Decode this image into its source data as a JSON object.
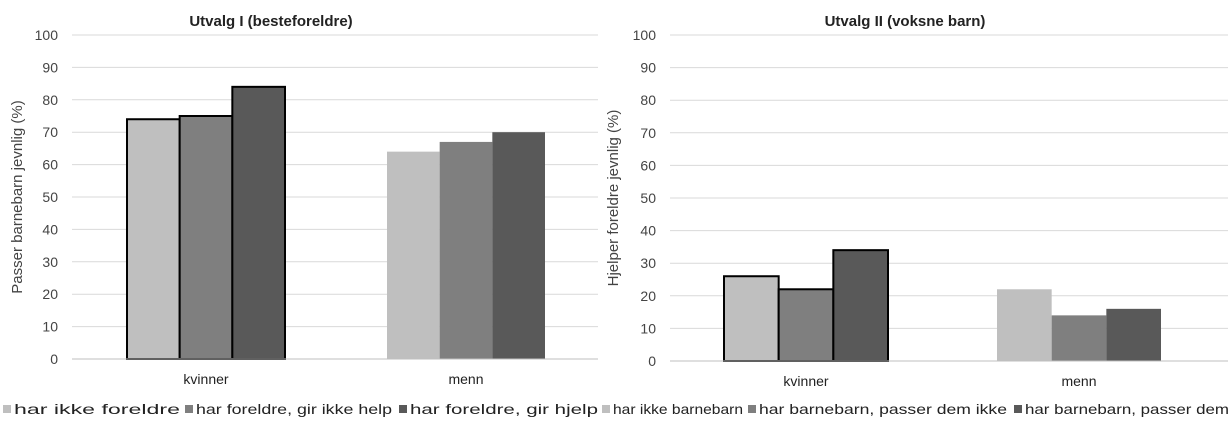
{
  "chart_data": [
    {
      "type": "bar",
      "title": "Utvalg I (besteforeldre)",
      "ylabel": "Passer barnebarn jevnlig (%)",
      "xlabel": "",
      "ylim": [
        0,
        100
      ],
      "yticks": [
        0,
        10,
        20,
        30,
        40,
        50,
        60,
        70,
        80,
        90,
        100
      ],
      "grid": true,
      "legend_position": "bottom",
      "categories": [
        "kvinner",
        "menn"
      ],
      "series": [
        {
          "name": "har ikke foreldre",
          "values": [
            74,
            64
          ],
          "color": "#bfbfbf"
        },
        {
          "name": "har foreldre, gir ikke help",
          "values": [
            75,
            67
          ],
          "color": "#7f7f7f"
        },
        {
          "name": "har foreldre, gir hjelp",
          "values": [
            84,
            70
          ],
          "color": "#595959"
        }
      ],
      "outlined_category": "kvinner"
    },
    {
      "type": "bar",
      "title": "Utvalg II (voksne barn)",
      "ylabel": "Hjelper foreldre jevnlig (%)",
      "xlabel": "",
      "ylim": [
        0,
        100
      ],
      "yticks": [
        0,
        10,
        20,
        30,
        40,
        50,
        60,
        70,
        80,
        90,
        100
      ],
      "grid": true,
      "legend_position": "bottom",
      "categories": [
        "kvinner",
        "menn"
      ],
      "series": [
        {
          "name": "har ikke barnebarn",
          "values": [
            26,
            22
          ],
          "color": "#bfbfbf"
        },
        {
          "name": "har barnebarn, passer dem ikke",
          "values": [
            22,
            14
          ],
          "color": "#7f7f7f"
        },
        {
          "name": "har barnebarn, passer dem",
          "values": [
            34,
            16
          ],
          "color": "#595959"
        }
      ],
      "outlined_category": "kvinner"
    }
  ]
}
